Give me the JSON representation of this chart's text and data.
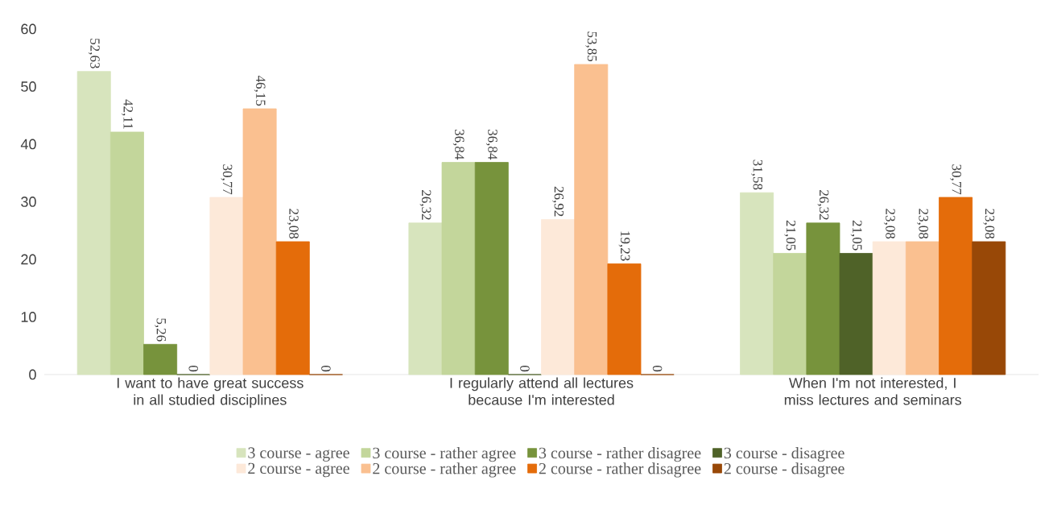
{
  "chart_data": {
    "type": "bar",
    "categories": [
      "I want to have great success in all studied disciplines",
      "I regularly attend all lectures because I'm interested",
      "When I'm not interested, I miss lectures and seminars"
    ],
    "series": [
      {
        "name": "3 course - agree",
        "color": "#d7e4bd",
        "values": [
          52.63,
          26.32,
          31.58
        ],
        "value_labels": [
          "52,63",
          "26,32",
          "31,58"
        ]
      },
      {
        "name": "3 course - rather agree",
        "color": "#c3d69b",
        "values": [
          42.11,
          36.84,
          21.05
        ],
        "value_labels": [
          "42,11",
          "36,84",
          "21,05"
        ]
      },
      {
        "name": "3 course - rather disagree",
        "color": "#77933c",
        "values": [
          5.26,
          36.84,
          26.32
        ],
        "value_labels": [
          "5,26",
          "36,84",
          "26,32"
        ]
      },
      {
        "name": "3 course - disagree",
        "color": "#4f6228",
        "values": [
          0,
          0,
          21.05
        ],
        "value_labels": [
          "0",
          "0",
          "21,05"
        ]
      },
      {
        "name": "2 course - agree",
        "color": "#fde9d9",
        "values": [
          30.77,
          26.92,
          23.08
        ],
        "value_labels": [
          "30,77",
          "26,92",
          "23,08"
        ]
      },
      {
        "name": "2 course - rather agree",
        "color": "#fac090",
        "values": [
          46.15,
          53.85,
          23.08
        ],
        "value_labels": [
          "46,15",
          "53,85",
          "23,08"
        ]
      },
      {
        "name": "2 course - rather disagree",
        "color": "#e46c0a",
        "values": [
          23.08,
          19.23,
          30.77
        ],
        "value_labels": [
          "23,08",
          "19,23",
          "30,77"
        ]
      },
      {
        "name": "2 course - disagree",
        "color": "#984807",
        "values": [
          0,
          0,
          23.08
        ],
        "value_labels": [
          "0",
          "0",
          "23,08"
        ]
      }
    ],
    "ylim": [
      0,
      60
    ],
    "yticks": [
      0,
      10,
      20,
      30,
      40,
      50,
      60
    ],
    "grid": false,
    "legend": "bottom"
  }
}
